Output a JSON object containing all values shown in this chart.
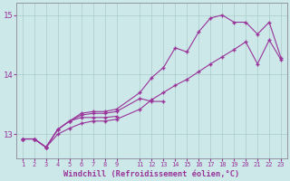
{
  "xlabel": "Windchill (Refroidissement éolien,°C)",
  "bg_color": "#cce8e8",
  "line_color": "#993399",
  "grid_color": "#aacccc",
  "line1_x": [
    1,
    2,
    3,
    4,
    5,
    6,
    7,
    8,
    9
  ],
  "line1_y": [
    12.92,
    12.92,
    12.78,
    13.08,
    13.22,
    13.28,
    13.28,
    13.28,
    13.3
  ],
  "line2_x": [
    1,
    2,
    3,
    4,
    5,
    6,
    7,
    8,
    9,
    11,
    12,
    13
  ],
  "line2_y": [
    12.92,
    12.92,
    12.78,
    13.08,
    13.22,
    13.32,
    13.35,
    13.35,
    13.38,
    13.6,
    13.55,
    13.55
  ],
  "line3_x": [
    1,
    2,
    3,
    4,
    5,
    6,
    7,
    8,
    9,
    11,
    12,
    13,
    14,
    15,
    16,
    17,
    18,
    19,
    20,
    21,
    22,
    23
  ],
  "line3_y": [
    12.92,
    12.92,
    12.78,
    13.08,
    13.22,
    13.35,
    13.38,
    13.38,
    13.42,
    13.7,
    13.95,
    14.12,
    14.45,
    14.38,
    14.72,
    14.95,
    15.0,
    14.88,
    14.88,
    14.68,
    14.88,
    14.28
  ],
  "line4_x": [
    1,
    2,
    3,
    4,
    5,
    6,
    7,
    8,
    9,
    11,
    12,
    13,
    14,
    15,
    16,
    17,
    18,
    19,
    20,
    21,
    22,
    23
  ],
  "line4_y": [
    12.92,
    12.92,
    12.78,
    13.0,
    13.1,
    13.18,
    13.22,
    13.22,
    13.25,
    13.42,
    13.58,
    13.7,
    13.82,
    13.92,
    14.05,
    14.18,
    14.3,
    14.42,
    14.55,
    14.18,
    14.58,
    14.25
  ],
  "ylim": [
    12.6,
    15.2
  ],
  "yticks": [
    13,
    14,
    15
  ],
  "xticks": [
    1,
    2,
    3,
    4,
    5,
    6,
    7,
    8,
    9,
    11,
    12,
    13,
    14,
    15,
    16,
    17,
    18,
    19,
    20,
    21,
    22,
    23
  ]
}
